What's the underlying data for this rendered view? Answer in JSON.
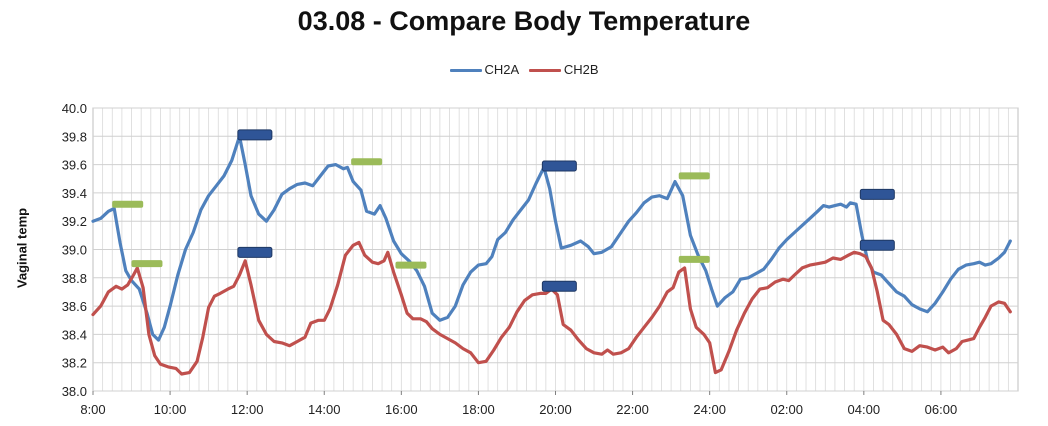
{
  "chart_data": {
    "type": "line",
    "title": "03.08 - Compare Body Temperature",
    "xlabel": "",
    "ylabel": "Vaginal temp",
    "ylim": [
      38.0,
      40.0
    ],
    "yticks": [
      "38.0",
      "38.2",
      "38.4",
      "38.6",
      "38.8",
      "39.0",
      "39.2",
      "39.4",
      "39.6",
      "39.8",
      "40.0"
    ],
    "xticks": [
      "8:00",
      "10:00",
      "12:00",
      "14:00",
      "16:00",
      "18:00",
      "20:00",
      "22:00",
      "24:00",
      "02:00",
      "04:00",
      "06:00"
    ],
    "x_unit": "hours since 8:00",
    "xlim": [
      0,
      24
    ],
    "grid": true,
    "legend_position": "top-center",
    "series": [
      {
        "name": "CH2A",
        "color": "#4f81bd",
        "points": [
          [
            0,
            39.2
          ],
          [
            0.2,
            39.22
          ],
          [
            0.4,
            39.27
          ],
          [
            0.55,
            39.29
          ],
          [
            0.7,
            39.05
          ],
          [
            0.85,
            38.85
          ],
          [
            1.0,
            38.78
          ],
          [
            1.2,
            38.72
          ],
          [
            1.4,
            38.55
          ],
          [
            1.55,
            38.4
          ],
          [
            1.7,
            38.36
          ],
          [
            1.85,
            38.45
          ],
          [
            2.0,
            38.6
          ],
          [
            2.2,
            38.82
          ],
          [
            2.4,
            39.0
          ],
          [
            2.6,
            39.12
          ],
          [
            2.8,
            39.28
          ],
          [
            3.0,
            39.38
          ],
          [
            3.2,
            39.45
          ],
          [
            3.4,
            39.52
          ],
          [
            3.6,
            39.63
          ],
          [
            3.8,
            39.8
          ],
          [
            3.95,
            39.6
          ],
          [
            4.1,
            39.38
          ],
          [
            4.3,
            39.25
          ],
          [
            4.5,
            39.2
          ],
          [
            4.7,
            39.28
          ],
          [
            4.9,
            39.39
          ],
          [
            5.1,
            39.43
          ],
          [
            5.3,
            39.46
          ],
          [
            5.5,
            39.47
          ],
          [
            5.7,
            39.45
          ],
          [
            5.9,
            39.52
          ],
          [
            6.1,
            39.59
          ],
          [
            6.3,
            39.6
          ],
          [
            6.5,
            39.57
          ],
          [
            6.6,
            39.58
          ],
          [
            6.75,
            39.48
          ],
          [
            6.95,
            39.42
          ],
          [
            7.1,
            39.27
          ],
          [
            7.3,
            39.25
          ],
          [
            7.45,
            39.31
          ],
          [
            7.6,
            39.22
          ],
          [
            7.8,
            39.06
          ],
          [
            8.0,
            38.97
          ],
          [
            8.2,
            38.92
          ],
          [
            8.4,
            38.85
          ],
          [
            8.6,
            38.74
          ],
          [
            8.8,
            38.55
          ],
          [
            9.0,
            38.5
          ],
          [
            9.2,
            38.52
          ],
          [
            9.4,
            38.6
          ],
          [
            9.6,
            38.75
          ],
          [
            9.8,
            38.84
          ],
          [
            10.0,
            38.89
          ],
          [
            10.2,
            38.9
          ],
          [
            10.35,
            38.95
          ],
          [
            10.5,
            39.07
          ],
          [
            10.7,
            39.12
          ],
          [
            10.9,
            39.21
          ],
          [
            11.1,
            39.28
          ],
          [
            11.3,
            39.35
          ],
          [
            11.5,
            39.47
          ],
          [
            11.7,
            39.58
          ],
          [
            11.85,
            39.43
          ],
          [
            12.0,
            39.2
          ],
          [
            12.15,
            39.01
          ],
          [
            12.4,
            39.03
          ],
          [
            12.65,
            39.06
          ],
          [
            12.85,
            39.02
          ],
          [
            13.0,
            38.97
          ],
          [
            13.2,
            38.98
          ],
          [
            13.45,
            39.02
          ],
          [
            13.7,
            39.12
          ],
          [
            13.9,
            39.2
          ],
          [
            14.1,
            39.26
          ],
          [
            14.3,
            39.33
          ],
          [
            14.5,
            39.37
          ],
          [
            14.7,
            39.38
          ],
          [
            14.9,
            39.36
          ],
          [
            15.1,
            39.48
          ],
          [
            15.3,
            39.38
          ],
          [
            15.5,
            39.1
          ],
          [
            15.7,
            38.96
          ],
          [
            15.9,
            38.85
          ],
          [
            16.05,
            38.72
          ],
          [
            16.2,
            38.6
          ],
          [
            16.4,
            38.66
          ],
          [
            16.6,
            38.7
          ],
          [
            16.8,
            38.79
          ],
          [
            17.0,
            38.8
          ],
          [
            17.2,
            38.83
          ],
          [
            17.4,
            38.86
          ],
          [
            17.6,
            38.93
          ],
          [
            17.8,
            39.01
          ],
          [
            18.0,
            39.07
          ],
          [
            18.2,
            39.12
          ],
          [
            18.4,
            39.17
          ],
          [
            18.6,
            39.22
          ],
          [
            18.8,
            39.27
          ],
          [
            18.95,
            39.31
          ],
          [
            19.1,
            39.3
          ],
          [
            19.25,
            39.31
          ],
          [
            19.4,
            39.32
          ],
          [
            19.55,
            39.3
          ],
          [
            19.65,
            39.33
          ],
          [
            19.8,
            39.32
          ],
          [
            19.95,
            39.1
          ],
          [
            20.1,
            38.92
          ],
          [
            20.25,
            38.84
          ],
          [
            20.45,
            38.82
          ],
          [
            20.65,
            38.76
          ],
          [
            20.85,
            38.7
          ],
          [
            21.05,
            38.67
          ],
          [
            21.25,
            38.61
          ],
          [
            21.45,
            38.58
          ],
          [
            21.65,
            38.56
          ],
          [
            21.85,
            38.62
          ],
          [
            22.05,
            38.7
          ],
          [
            22.25,
            38.79
          ],
          [
            22.45,
            38.86
          ],
          [
            22.65,
            38.89
          ],
          [
            22.85,
            38.9
          ],
          [
            23.0,
            38.91
          ],
          [
            23.15,
            38.89
          ],
          [
            23.3,
            38.9
          ],
          [
            23.5,
            38.94
          ],
          [
            23.65,
            38.98
          ],
          [
            23.8,
            39.06
          ]
        ]
      },
      {
        "name": "CH2B",
        "color": "#c0504d",
        "points": [
          [
            0,
            38.54
          ],
          [
            0.2,
            38.6
          ],
          [
            0.4,
            38.7
          ],
          [
            0.6,
            38.74
          ],
          [
            0.75,
            38.72
          ],
          [
            0.9,
            38.75
          ],
          [
            1.05,
            38.82
          ],
          [
            1.15,
            38.87
          ],
          [
            1.3,
            38.73
          ],
          [
            1.45,
            38.4
          ],
          [
            1.6,
            38.25
          ],
          [
            1.75,
            38.19
          ],
          [
            1.95,
            38.17
          ],
          [
            2.15,
            38.16
          ],
          [
            2.3,
            38.12
          ],
          [
            2.5,
            38.13
          ],
          [
            2.7,
            38.21
          ],
          [
            2.85,
            38.38
          ],
          [
            3.0,
            38.59
          ],
          [
            3.15,
            38.67
          ],
          [
            3.3,
            38.69
          ],
          [
            3.5,
            38.72
          ],
          [
            3.65,
            38.74
          ],
          [
            3.8,
            38.82
          ],
          [
            3.95,
            38.92
          ],
          [
            4.1,
            38.75
          ],
          [
            4.3,
            38.5
          ],
          [
            4.5,
            38.4
          ],
          [
            4.7,
            38.35
          ],
          [
            4.9,
            38.34
          ],
          [
            5.1,
            38.32
          ],
          [
            5.3,
            38.35
          ],
          [
            5.5,
            38.38
          ],
          [
            5.65,
            38.48
          ],
          [
            5.85,
            38.5
          ],
          [
            6.0,
            38.5
          ],
          [
            6.15,
            38.58
          ],
          [
            6.35,
            38.75
          ],
          [
            6.55,
            38.96
          ],
          [
            6.75,
            39.03
          ],
          [
            6.9,
            39.05
          ],
          [
            7.05,
            38.96
          ],
          [
            7.25,
            38.91
          ],
          [
            7.4,
            38.9
          ],
          [
            7.55,
            38.92
          ],
          [
            7.65,
            38.98
          ],
          [
            7.8,
            38.84
          ],
          [
            8.0,
            38.68
          ],
          [
            8.15,
            38.55
          ],
          [
            8.3,
            38.51
          ],
          [
            8.5,
            38.51
          ],
          [
            8.65,
            38.49
          ],
          [
            8.8,
            38.44
          ],
          [
            9.0,
            38.4
          ],
          [
            9.2,
            38.37
          ],
          [
            9.4,
            38.34
          ],
          [
            9.6,
            38.3
          ],
          [
            9.8,
            38.27
          ],
          [
            10.0,
            38.2
          ],
          [
            10.2,
            38.21
          ],
          [
            10.4,
            38.29
          ],
          [
            10.6,
            38.38
          ],
          [
            10.8,
            38.45
          ],
          [
            11.0,
            38.56
          ],
          [
            11.2,
            38.64
          ],
          [
            11.4,
            38.68
          ],
          [
            11.6,
            38.69
          ],
          [
            11.75,
            38.69
          ],
          [
            11.9,
            38.72
          ],
          [
            12.05,
            38.68
          ],
          [
            12.2,
            38.47
          ],
          [
            12.4,
            38.43
          ],
          [
            12.6,
            38.36
          ],
          [
            12.8,
            38.3
          ],
          [
            13.0,
            38.27
          ],
          [
            13.2,
            38.26
          ],
          [
            13.35,
            38.29
          ],
          [
            13.5,
            38.26
          ],
          [
            13.7,
            38.27
          ],
          [
            13.9,
            38.3
          ],
          [
            14.1,
            38.38
          ],
          [
            14.3,
            38.45
          ],
          [
            14.5,
            38.52
          ],
          [
            14.7,
            38.6
          ],
          [
            14.9,
            38.7
          ],
          [
            15.05,
            38.73
          ],
          [
            15.2,
            38.84
          ],
          [
            15.35,
            38.87
          ],
          [
            15.5,
            38.58
          ],
          [
            15.65,
            38.45
          ],
          [
            15.85,
            38.4
          ],
          [
            16.0,
            38.34
          ],
          [
            16.15,
            38.13
          ],
          [
            16.3,
            38.15
          ],
          [
            16.5,
            38.28
          ],
          [
            16.7,
            38.43
          ],
          [
            16.9,
            38.55
          ],
          [
            17.1,
            38.65
          ],
          [
            17.3,
            38.72
          ],
          [
            17.5,
            38.73
          ],
          [
            17.7,
            38.77
          ],
          [
            17.9,
            38.79
          ],
          [
            18.05,
            38.78
          ],
          [
            18.2,
            38.82
          ],
          [
            18.4,
            38.87
          ],
          [
            18.6,
            38.89
          ],
          [
            18.8,
            38.9
          ],
          [
            19.0,
            38.91
          ],
          [
            19.2,
            38.94
          ],
          [
            19.4,
            38.93
          ],
          [
            19.6,
            38.96
          ],
          [
            19.75,
            38.98
          ],
          [
            19.9,
            38.97
          ],
          [
            20.05,
            38.95
          ],
          [
            20.2,
            38.87
          ],
          [
            20.35,
            38.7
          ],
          [
            20.5,
            38.5
          ],
          [
            20.65,
            38.47
          ],
          [
            20.85,
            38.4
          ],
          [
            21.05,
            38.3
          ],
          [
            21.25,
            38.28
          ],
          [
            21.45,
            38.32
          ],
          [
            21.65,
            38.31
          ],
          [
            21.85,
            38.29
          ],
          [
            22.05,
            38.31
          ],
          [
            22.2,
            38.27
          ],
          [
            22.4,
            38.3
          ],
          [
            22.55,
            38.35
          ],
          [
            22.7,
            38.36
          ],
          [
            22.85,
            38.37
          ],
          [
            23.0,
            38.45
          ],
          [
            23.15,
            38.52
          ],
          [
            23.3,
            38.6
          ],
          [
            23.5,
            38.63
          ],
          [
            23.65,
            38.62
          ],
          [
            23.8,
            38.56
          ]
        ]
      }
    ],
    "annotations": [
      {
        "x": 0.9,
        "y": 39.32,
        "color": "#9bbb59"
      },
      {
        "x": 1.4,
        "y": 38.9,
        "color": "#9bbb59"
      },
      {
        "x": 4.2,
        "y": 39.81,
        "color": "#2f5597"
      },
      {
        "x": 4.2,
        "y": 38.98,
        "color": "#2f5597"
      },
      {
        "x": 7.1,
        "y": 39.62,
        "color": "#9bbb59"
      },
      {
        "x": 8.25,
        "y": 38.89,
        "color": "#9bbb59"
      },
      {
        "x": 12.1,
        "y": 39.59,
        "color": "#2f5597"
      },
      {
        "x": 12.1,
        "y": 38.74,
        "color": "#2f5597"
      },
      {
        "x": 15.6,
        "y": 39.52,
        "color": "#9bbb59"
      },
      {
        "x": 15.6,
        "y": 38.93,
        "color": "#9bbb59"
      },
      {
        "x": 20.35,
        "y": 39.39,
        "color": "#2f5597"
      },
      {
        "x": 20.35,
        "y": 39.03,
        "color": "#2f5597"
      }
    ]
  }
}
